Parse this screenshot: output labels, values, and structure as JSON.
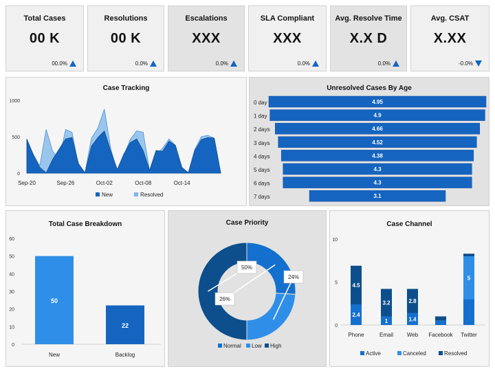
{
  "kpis": [
    {
      "title": "Total Cases",
      "value": "00 K",
      "change": "00.0%",
      "trend": "up"
    },
    {
      "title": "Resolutions",
      "value": "00 K",
      "change": "0.0%",
      "trend": "up"
    },
    {
      "title": "Escalations",
      "value": "XXX",
      "change": "0.0%",
      "trend": "up"
    },
    {
      "title": "SLA Compliant",
      "value": "XXX",
      "change": "0.0%",
      "trend": "up"
    },
    {
      "title": "Avg. Resolve Time",
      "value": "X.X D",
      "change": "0.0%",
      "trend": "up"
    },
    {
      "title": "Avg. CSAT",
      "value": "X.XX",
      "change": "-0.0%",
      "trend": "down"
    }
  ],
  "colors": {
    "dark": "#0d4f8c",
    "mid": "#1565c0",
    "light": "#2f8fe8",
    "pale": "#7bb6ea"
  },
  "chart_data": [
    {
      "type": "area",
      "title": "Case Tracking",
      "x_ticks": [
        "Sep-20",
        "Sep-26",
        "Oct-02",
        "Oct-08",
        "Oct-14"
      ],
      "ylim": [
        0,
        1000
      ],
      "y_ticks": [
        "0",
        "500",
        "1000"
      ],
      "legend": [
        "New",
        "Resolved"
      ],
      "series": [
        {
          "name": "New",
          "values": [
            470,
            250,
            80,
            5,
            190,
            330,
            470,
            490,
            130,
            5,
            370,
            490,
            580,
            300,
            50,
            260,
            420,
            470,
            310,
            40,
            310,
            300,
            440,
            380,
            80,
            5,
            310,
            460,
            490,
            480,
            5
          ]
        },
        {
          "name": "Resolved",
          "values": [
            460,
            260,
            100,
            600,
            300,
            180,
            600,
            560,
            100,
            5,
            480,
            620,
            880,
            330,
            20,
            240,
            460,
            580,
            560,
            30,
            260,
            340,
            470,
            380,
            60,
            10,
            330,
            500,
            520,
            480,
            5
          ]
        }
      ]
    },
    {
      "type": "bar",
      "title": "Unresolved Cases By Age",
      "categories": [
        "0 day",
        "1 day",
        "2 days",
        "3 days",
        "4 days",
        "5 days",
        "6 days",
        "7 days"
      ],
      "values": [
        4.95,
        4.9,
        4.66,
        4.52,
        4.38,
        4.3,
        4.3,
        3.1
      ],
      "labels": [
        "4.95",
        "4.9",
        "4.66",
        "4.52",
        "4.38",
        "4.3",
        "4.3",
        "3.1"
      ]
    },
    {
      "type": "bar",
      "title": "Total Case Breakdown",
      "categories": [
        "New",
        "Backlog"
      ],
      "values": [
        50,
        22
      ],
      "ylim": [
        0,
        60
      ],
      "y_ticks": [
        "0",
        "10",
        "20",
        "30",
        "40",
        "50",
        "60"
      ]
    },
    {
      "type": "pie",
      "title": "Case Priority",
      "slices": [
        {
          "name": "Normal",
          "value": 26,
          "label": "26%"
        },
        {
          "name": "Low",
          "value": 24,
          "label": "24%"
        },
        {
          "name": "High",
          "value": 50,
          "label": "50%"
        }
      ]
    },
    {
      "type": "bar",
      "title": "Case Channel",
      "categories": [
        "Phone",
        "Email",
        "Web",
        "Facebook",
        "Twitter"
      ],
      "ylim": [
        0,
        10
      ],
      "y_ticks": [
        "0",
        "5",
        "10"
      ],
      "series": [
        {
          "name": "Active",
          "values": [
            2.4,
            1,
            1.4,
            0.5,
            3
          ]
        },
        {
          "name": "Canceled",
          "values": [
            0,
            0,
            0,
            0,
            5
          ]
        },
        {
          "name": "Resolved",
          "values": [
            4.5,
            3.2,
            2.8,
            0.5,
            0.3
          ]
        }
      ],
      "labels": {
        "Active": [
          "2.4",
          "1",
          "1.4",
          "",
          ""
        ],
        "Canceled": [
          "",
          "",
          "",
          "",
          "5"
        ],
        "Resolved": [
          "4.5",
          "3.2",
          "2.8",
          "",
          ""
        ]
      }
    }
  ]
}
